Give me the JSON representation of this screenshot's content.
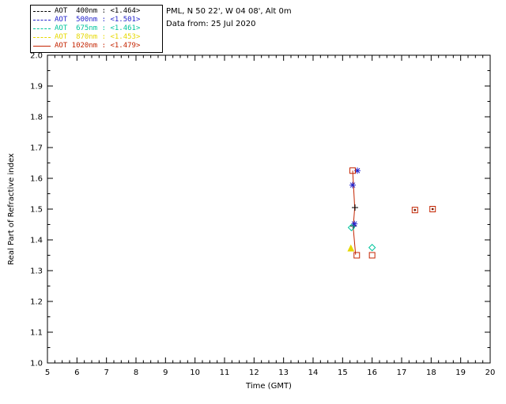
{
  "header": {
    "line1": "PML, N 50 22', W 04 08', Alt 0m",
    "line2": "Data from: 25 Jul 2020"
  },
  "chart_data": {
    "type": "scatter",
    "title": "",
    "xlabel": "Time (GMT)",
    "ylabel": "Real Part of Refractive index",
    "xlim": [
      5,
      20
    ],
    "ylim": [
      1.0,
      2.0
    ],
    "x_ticks": [
      5,
      6,
      7,
      8,
      9,
      10,
      11,
      12,
      13,
      14,
      15,
      16,
      17,
      18,
      19,
      20
    ],
    "x_tick_labels": [
      "5",
      "6",
      "7",
      "8",
      "9",
      "10",
      "11",
      "12",
      "13",
      "14",
      "15",
      "16",
      "17",
      "18",
      "19",
      "20"
    ],
    "y_ticks": [
      1.0,
      1.1,
      1.2,
      1.3,
      1.4,
      1.5,
      1.6,
      1.7,
      1.8,
      1.9,
      2.0
    ],
    "y_tick_labels": [
      "1.0",
      "1.1",
      "1.2",
      "1.3",
      "1.4",
      "1.5",
      "1.6",
      "1.7",
      "1.8",
      "1.9",
      "2.0"
    ],
    "x_minor_step": 0.25,
    "y_minor_step": 0.05,
    "grid": false,
    "legend_position": "top-left-outside",
    "series": [
      {
        "name": "AOT  400nm",
        "mean": "<1.464>",
        "color": "#000000",
        "line_style": "dashed",
        "marker": "plus",
        "points": [
          {
            "x": 15.42,
            "y": 1.505
          },
          {
            "x": 15.36,
            "y": 1.445
          }
        ]
      },
      {
        "name": "AOT  500nm",
        "mean": "<1.501>",
        "color": "#2424cc",
        "line_style": "dashed",
        "marker": "asterisk",
        "points": [
          {
            "x": 15.5,
            "y": 1.625
          },
          {
            "x": 15.34,
            "y": 1.578
          },
          {
            "x": 15.4,
            "y": 1.452
          }
        ]
      },
      {
        "name": "AOT  675nm",
        "mean": "<1.461>",
        "color": "#00c49c",
        "line_style": "dashed",
        "marker": "diamond",
        "points": [
          {
            "x": 15.3,
            "y": 1.44
          },
          {
            "x": 16.0,
            "y": 1.375
          }
        ]
      },
      {
        "name": "AOT  870nm",
        "mean": "<1.453>",
        "color": "#e6d800",
        "line_style": "dashed",
        "marker": "triangle",
        "points": [
          {
            "x": 15.28,
            "y": 1.372
          }
        ]
      },
      {
        "name": "AOT 1020nm",
        "mean": "<1.479>",
        "color": "#c42400",
        "line_style": "solid",
        "marker": "square",
        "points": [
          {
            "x": 15.34,
            "y": 1.625
          },
          {
            "x": 15.48,
            "y": 1.35
          },
          {
            "x": 16.0,
            "y": 1.35
          },
          {
            "x": 17.45,
            "y": 1.497,
            "dot": true
          },
          {
            "x": 18.05,
            "y": 1.5,
            "dot": true
          }
        ]
      }
    ],
    "trace": {
      "color": "#c42400",
      "points": [
        {
          "x": 15.34,
          "y": 1.625
        },
        {
          "x": 15.37,
          "y": 1.575
        },
        {
          "x": 15.41,
          "y": 1.505
        },
        {
          "x": 15.36,
          "y": 1.44
        },
        {
          "x": 15.44,
          "y": 1.352
        }
      ]
    }
  }
}
